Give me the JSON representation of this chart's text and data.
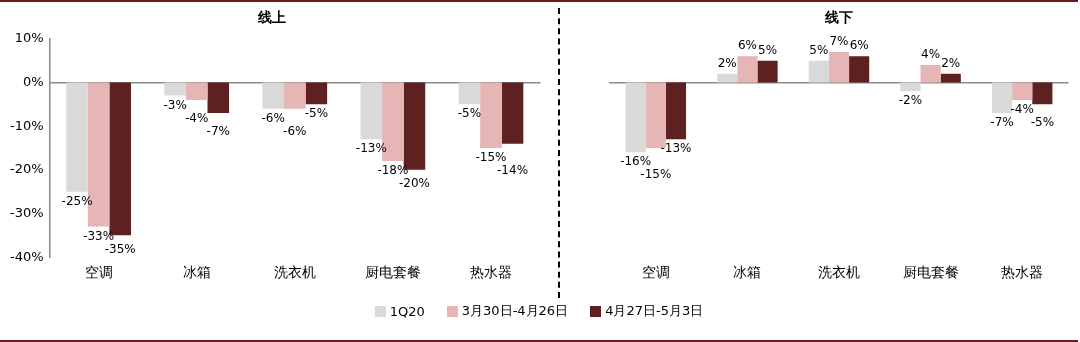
{
  "chart_data": [
    {
      "type": "bar",
      "title": "线上",
      "categories": [
        "空调",
        "冰箱",
        "洗衣机",
        "厨电套餐",
        "热水器"
      ],
      "series": [
        {
          "name": "1Q20",
          "color": "#d9d9d9",
          "values": [
            -25,
            -3,
            -6,
            -13,
            -5
          ],
          "value_labels": [
            "-25%",
            "-3%",
            "-6%",
            "-13%",
            "-5%"
          ]
        },
        {
          "name": "3月30日-4月26日",
          "color": "#e6b5b5",
          "values": [
            -33,
            -4,
            -6,
            -18,
            -15
          ],
          "value_labels": [
            "-33%",
            "-4%",
            "-6%",
            "-18%",
            "-15%"
          ]
        },
        {
          "name": "4月27日-5月3日",
          "color": "#5e2121",
          "values": [
            -35,
            -7,
            -5,
            -20,
            -14
          ],
          "value_labels": [
            "-35%",
            "-7%",
            "-5%",
            "-20%",
            "-14%"
          ]
        }
      ],
      "ylim": [
        -40,
        10
      ],
      "yticks": [
        {
          "value": -40,
          "label": "-40%"
        },
        {
          "value": -30,
          "label": "-30%"
        },
        {
          "value": -20,
          "label": "-20%"
        },
        {
          "value": -10,
          "label": "-10%"
        },
        {
          "value": 0,
          "label": "0%"
        },
        {
          "value": 10,
          "label": "10%"
        }
      ],
      "legend": "bottom"
    },
    {
      "type": "bar",
      "title": "线下",
      "categories": [
        "空调",
        "冰箱",
        "洗衣机",
        "厨电套餐",
        "热水器"
      ],
      "series": [
        {
          "color": "#d9d9d9",
          "values": [
            -16,
            2,
            5,
            -2,
            -7
          ],
          "value_labels": [
            "-16%",
            "2%",
            "5%",
            "-2%",
            "-7%"
          ]
        },
        {
          "color": "#e6b5b5",
          "values": [
            -15,
            6,
            7,
            4,
            -4
          ],
          "value_labels": [
            "-15%",
            "6%",
            "7%",
            "4%",
            "-4%"
          ]
        },
        {
          "color": "#5e2121",
          "values": [
            -13,
            5,
            6,
            2,
            -5
          ],
          "value_labels": [
            "-13%",
            "5%",
            "6%",
            "2%",
            "-5%"
          ]
        }
      ],
      "ylim": [
        -40,
        10
      ],
      "tick_labels": "x"
    }
  ]
}
